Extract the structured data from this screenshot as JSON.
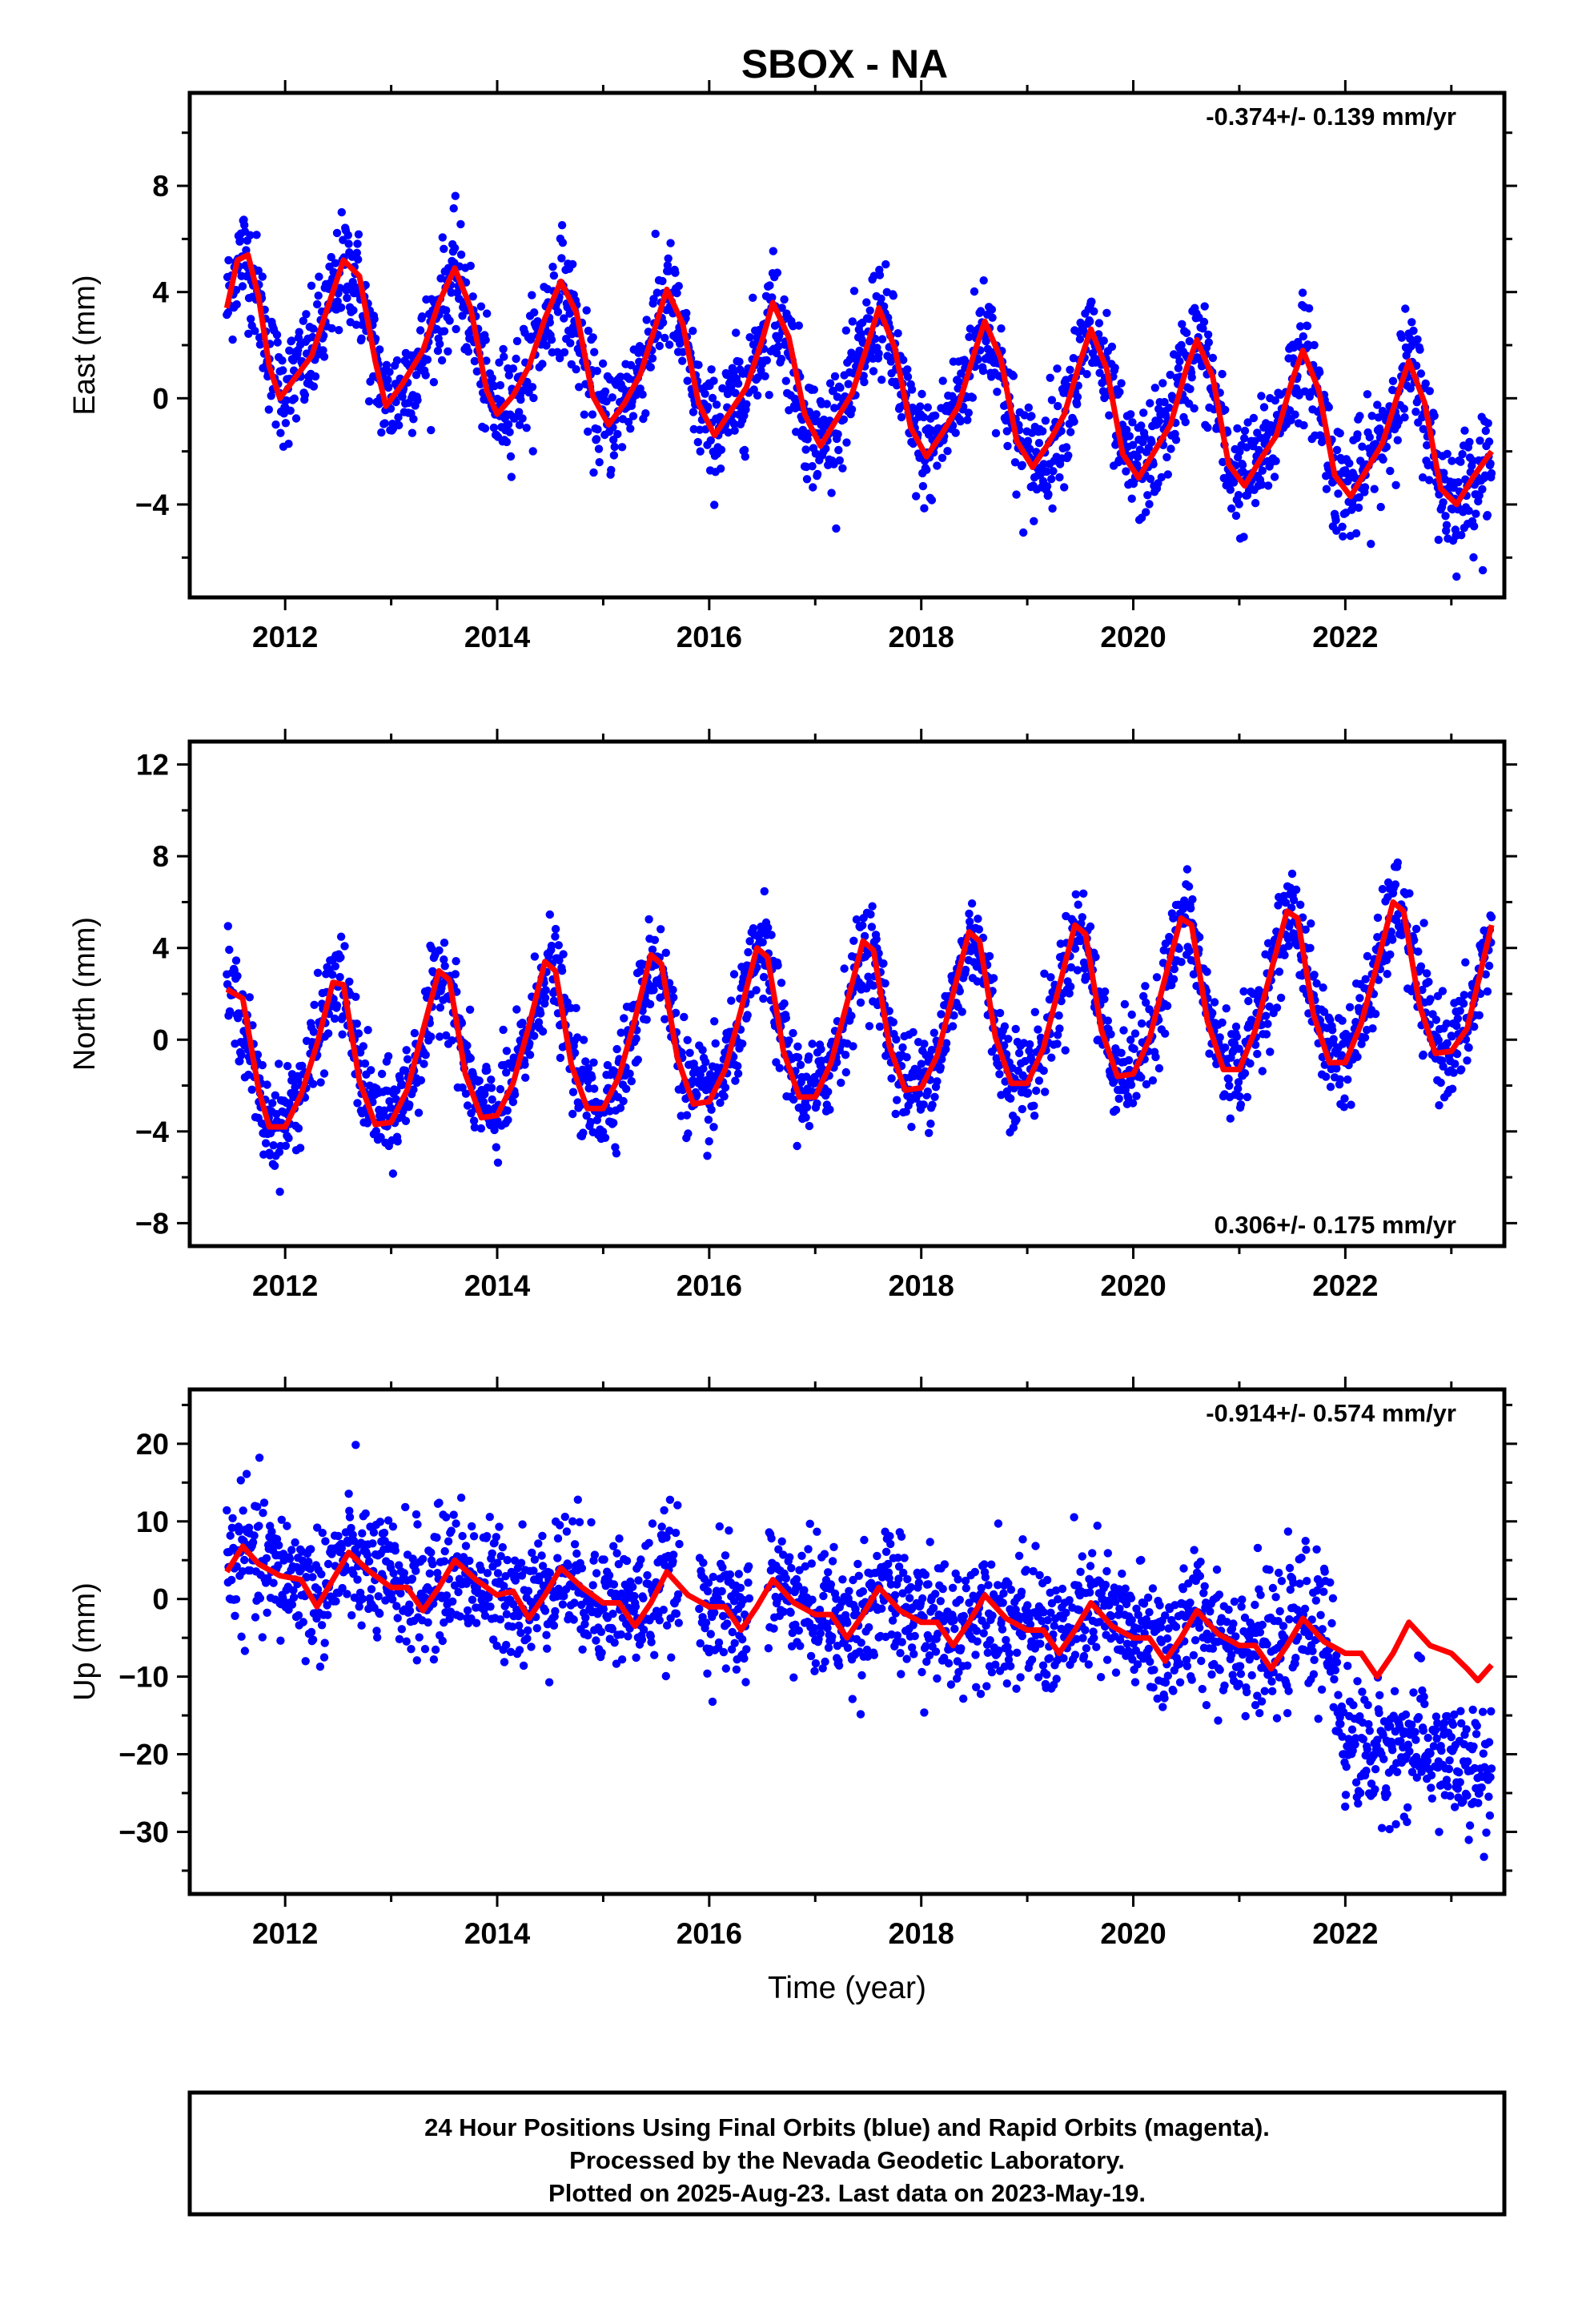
{
  "chart_data": [
    {
      "type": "scatter",
      "title": "SBOX - NA",
      "ylabel": "East (mm)",
      "xlabel": "",
      "annotation": "-0.374+/- 0.139 mm/yr",
      "annotation_position": "top-right",
      "xlim": [
        2011.1,
        2023.5
      ],
      "ylim": [
        -7.5,
        11.5
      ],
      "x_ticks": [
        2012,
        2014,
        2016,
        2018,
        2020,
        2022
      ],
      "x_tick_labels": [
        "2012",
        "2014",
        "2016",
        "2018",
        "2020",
        "2022"
      ],
      "y_ticks": [
        -4,
        0,
        4,
        8
      ],
      "y_tick_labels": [
        "−4",
        "0",
        "4",
        "8"
      ],
      "colors": {
        "observations": "#0000ff",
        "model": "#ff0000"
      },
      "series": [
        {
          "kind": "observations",
          "note": "daily positions, scatter points follow the model with noise",
          "x": [
            2011.45,
            2011.6,
            2011.75,
            2012.0,
            2012.2,
            2012.45,
            2012.6,
            2012.8,
            2013.0,
            2013.3,
            2013.6,
            2013.9,
            2014.0,
            2014.3,
            2014.6,
            2014.8,
            2015.0,
            2015.3,
            2015.6,
            2015.8,
            2016.0,
            2016.3,
            2016.6,
            2016.9,
            2017.1,
            2017.4,
            2017.6,
            2017.9,
            2018.1,
            2018.4,
            2018.6,
            2018.9,
            2019.2,
            2019.5,
            2019.6,
            2019.9,
            2020.2,
            2020.4,
            2020.6,
            2020.9,
            2021.2,
            2021.4,
            2021.6,
            2021.9,
            2022.2,
            2022.4,
            2022.6,
            2022.9,
            2023.2,
            2023.38
          ],
          "y": [
            3.6,
            5.6,
            3.6,
            0.3,
            1.3,
            3.2,
            5.0,
            1.5,
            -0.2,
            1.1,
            4.7,
            0.3,
            -0.5,
            1.0,
            4.3,
            0.4,
            -1.0,
            0.8,
            4.0,
            0.2,
            -1.2,
            0.3,
            3.5,
            -1.0,
            -1.4,
            1.6,
            3.3,
            -1.4,
            -2.0,
            0.9,
            2.9,
            -1.9,
            -2.2,
            1.1,
            2.5,
            -2.3,
            -2.0,
            0.8,
            2.2,
            -2.7,
            -2.5,
            0.0,
            1.9,
            -3.0,
            -2.6,
            -0.5,
            1.4,
            -3.4,
            -3.2,
            -2.2
          ]
        },
        {
          "kind": "model",
          "x": [
            2011.45,
            2011.55,
            2011.65,
            2011.75,
            2011.85,
            2011.95,
            2012.1,
            2012.25,
            2012.4,
            2012.55,
            2012.7,
            2012.85,
            2012.95,
            2013.1,
            2013.3,
            2013.45,
            2013.6,
            2013.75,
            2013.9,
            2014.0,
            2014.15,
            2014.3,
            2014.45,
            2014.6,
            2014.75,
            2014.9,
            2015.05,
            2015.2,
            2015.35,
            2015.5,
            2015.6,
            2015.75,
            2015.9,
            2016.05,
            2016.2,
            2016.35,
            2016.5,
            2016.6,
            2016.75,
            2016.9,
            2017.05,
            2017.2,
            2017.35,
            2017.5,
            2017.6,
            2017.75,
            2017.9,
            2018.05,
            2018.2,
            2018.35,
            2018.5,
            2018.6,
            2018.75,
            2018.9,
            2019.05,
            2019.2,
            2019.35,
            2019.5,
            2019.6,
            2019.75,
            2019.9,
            2020.05,
            2020.2,
            2020.35,
            2020.5,
            2020.6,
            2020.75,
            2020.9,
            2021.05,
            2021.2,
            2021.35,
            2021.5,
            2021.6,
            2021.75,
            2021.9,
            2022.05,
            2022.2,
            2022.35,
            2022.5,
            2022.6,
            2022.75,
            2022.9,
            2023.05,
            2023.2,
            2023.38
          ],
          "y": [
            3.4,
            5.2,
            5.4,
            3.8,
            1.2,
            0.0,
            0.8,
            1.6,
            3.4,
            5.2,
            4.6,
            1.4,
            -0.3,
            0.5,
            1.8,
            3.6,
            4.9,
            3.4,
            0.3,
            -0.6,
            0.1,
            1.2,
            3.0,
            4.4,
            3.2,
            0.1,
            -1.0,
            -0.2,
            0.9,
            2.8,
            4.1,
            2.8,
            -0.2,
            -1.4,
            -0.5,
            0.4,
            2.2,
            3.6,
            2.3,
            -0.6,
            -1.8,
            -0.8,
            0.2,
            2.1,
            3.4,
            1.9,
            -1.1,
            -2.2,
            -1.3,
            -0.3,
            1.7,
            2.9,
            1.5,
            -1.6,
            -2.6,
            -1.7,
            -0.6,
            1.4,
            2.6,
            1.1,
            -2.1,
            -3.0,
            -2.0,
            -1.0,
            1.1,
            2.2,
            0.8,
            -2.5,
            -3.3,
            -2.3,
            -1.4,
            0.7,
            1.8,
            0.3,
            -2.9,
            -3.7,
            -2.7,
            -1.7,
            0.2,
            1.4,
            -0.2,
            -3.4,
            -4.0,
            -3.0,
            -2.0
          ]
        }
      ]
    },
    {
      "type": "scatter",
      "title": "",
      "ylabel": "North (mm)",
      "xlabel": "",
      "annotation": "0.306+/- 0.175 mm/yr",
      "annotation_position": "bottom-right",
      "xlim": [
        2011.1,
        2023.5
      ],
      "ylim": [
        -9,
        13
      ],
      "x_ticks": [
        2012,
        2014,
        2016,
        2018,
        2020,
        2022
      ],
      "x_tick_labels": [
        "2012",
        "2014",
        "2016",
        "2018",
        "2020",
        "2022"
      ],
      "y_ticks": [
        -8,
        -4,
        0,
        4,
        8,
        12
      ],
      "y_tick_labels": [
        "−8",
        "−4",
        "0",
        "4",
        "8",
        "12"
      ],
      "colors": {
        "observations": "#0000ff",
        "model": "#ff0000"
      },
      "series": [
        {
          "kind": "observations",
          "note": "daily positions, scatter points follow the model with noise",
          "x": [
            2011.45,
            2011.8,
            2012.0,
            2012.2,
            2012.5,
            2012.8,
            2013.0,
            2013.3,
            2013.5,
            2013.8,
            2014.0,
            2014.3,
            2014.5,
            2014.8,
            2015.0,
            2015.3,
            2015.5,
            2015.8,
            2016.0,
            2016.3,
            2016.5,
            2016.8,
            2017.0,
            2017.3,
            2017.5,
            2017.8,
            2018.0,
            2018.3,
            2018.5,
            2018.8,
            2019.0,
            2019.3,
            2019.5,
            2019.8,
            2020.0,
            2020.3,
            2020.5,
            2020.8,
            2021.0,
            2021.3,
            2021.5,
            2021.8,
            2022.0,
            2022.3,
            2022.5,
            2022.8,
            2023.0,
            2023.2,
            2023.38
          ],
          "y": [
            2.5,
            -4.0,
            -2.8,
            -1.3,
            2.8,
            -2.0,
            -3.3,
            -0.8,
            3.2,
            -2.2,
            -3.0,
            -0.5,
            3.5,
            -1.8,
            -2.8,
            -0.2,
            3.8,
            -1.3,
            -2.5,
            0.0,
            4.1,
            -1.2,
            -2.3,
            0.6,
            4.3,
            -0.8,
            -1.8,
            1.0,
            4.7,
            -0.5,
            -1.6,
            1.6,
            4.9,
            -0.3,
            -1.3,
            2.0,
            5.3,
            0.5,
            -0.8,
            2.4,
            5.6,
            1.0,
            -0.6,
            2.6,
            6.0,
            1.2,
            -0.5,
            1.0,
            5.0
          ]
        },
        {
          "kind": "model",
          "x": [
            2011.45,
            2011.6,
            2011.75,
            2011.85,
            2012.0,
            2012.15,
            2012.3,
            2012.45,
            2012.55,
            2012.7,
            2012.85,
            2013.0,
            2013.15,
            2013.3,
            2013.45,
            2013.55,
            2013.7,
            2013.85,
            2014.0,
            2014.15,
            2014.3,
            2014.45,
            2014.55,
            2014.7,
            2014.85,
            2015.0,
            2015.15,
            2015.3,
            2015.45,
            2015.55,
            2015.7,
            2015.85,
            2016.0,
            2016.15,
            2016.3,
            2016.45,
            2016.55,
            2016.7,
            2016.85,
            2017.0,
            2017.15,
            2017.3,
            2017.45,
            2017.55,
            2017.7,
            2017.85,
            2018.0,
            2018.15,
            2018.3,
            2018.45,
            2018.55,
            2018.7,
            2018.85,
            2019.0,
            2019.15,
            2019.3,
            2019.45,
            2019.55,
            2019.7,
            2019.85,
            2020.0,
            2020.15,
            2020.3,
            2020.45,
            2020.55,
            2020.7,
            2020.85,
            2021.0,
            2021.15,
            2021.3,
            2021.45,
            2021.55,
            2021.7,
            2021.85,
            2022.0,
            2022.15,
            2022.3,
            2022.45,
            2022.55,
            2022.7,
            2022.85,
            2023.0,
            2023.15,
            2023.38
          ],
          "y": [
            2.2,
            1.8,
            -2.2,
            -3.8,
            -3.8,
            -2.4,
            -0.2,
            2.5,
            2.4,
            -1.8,
            -3.7,
            -3.6,
            -2.2,
            0.4,
            3.0,
            2.6,
            -1.5,
            -3.4,
            -3.3,
            -1.9,
            0.6,
            3.4,
            3.0,
            -1.1,
            -3.0,
            -3.0,
            -1.6,
            0.9,
            3.7,
            3.3,
            -0.8,
            -2.8,
            -2.7,
            -1.3,
            1.3,
            4.0,
            3.6,
            -0.5,
            -2.5,
            -2.5,
            -1.0,
            1.6,
            4.3,
            3.9,
            -0.3,
            -2.2,
            -2.1,
            -0.7,
            2.0,
            4.7,
            4.3,
            0.1,
            -1.9,
            -1.9,
            -0.4,
            2.3,
            5.0,
            4.6,
            0.4,
            -1.6,
            -1.5,
            0.0,
            2.7,
            5.3,
            5.0,
            0.8,
            -1.3,
            -1.3,
            0.4,
            3.0,
            5.6,
            5.3,
            1.1,
            -1.0,
            -1.0,
            0.7,
            3.3,
            6.0,
            5.6,
            1.5,
            -0.6,
            -0.5,
            0.5,
            5.0
          ]
        }
      ]
    },
    {
      "type": "scatter",
      "title": "",
      "ylabel": "Up (mm)",
      "xlabel": "Time (year)",
      "annotation": "-0.914+/- 0.574 mm/yr",
      "annotation_position": "top-right",
      "xlim": [
        2011.1,
        2023.5
      ],
      "ylim": [
        -38,
        27
      ],
      "x_ticks": [
        2012,
        2014,
        2016,
        2018,
        2020,
        2022
      ],
      "x_tick_labels": [
        "2012",
        "2014",
        "2016",
        "2018",
        "2020",
        "2022"
      ],
      "y_ticks": [
        -30,
        -20,
        -10,
        0,
        10,
        20
      ],
      "y_tick_labels": [
        "−30",
        "−20",
        "−10",
        "0",
        "10",
        "20"
      ],
      "colors": {
        "observations": "#0000ff",
        "model": "#ff0000"
      },
      "series": [
        {
          "kind": "observations",
          "note": "daily positions; offset of about -15 mm after 2021.8",
          "x": [
            2011.45,
            2011.8,
            2012.2,
            2012.6,
            2013.0,
            2013.5,
            2014.0,
            2014.5,
            2015.0,
            2015.5,
            2016.0,
            2016.3,
            2016.6,
            2016.9,
            2017.3,
            2017.6,
            2018.0,
            2018.4,
            2018.8,
            2019.2,
            2019.6,
            2020.0,
            2020.4,
            2020.8,
            2021.2,
            2021.6,
            2021.8,
            2022.0,
            2022.3,
            2022.6,
            2022.9,
            2023.1,
            2023.38
          ],
          "y": [
            5.0,
            4.0,
            2.0,
            4.5,
            2.0,
            4.0,
            1.5,
            3.5,
            0.5,
            2.5,
            -0.5,
            -2.0,
            2.0,
            0.0,
            -1.5,
            1.0,
            -2.0,
            -1.0,
            -2.5,
            -3.0,
            -1.0,
            -3.5,
            -4.0,
            -3.5,
            -5.0,
            -1.5,
            -2.0,
            -18.0,
            -20.0,
            -18.5,
            -20.0,
            -22.0,
            -24.0
          ]
        },
        {
          "kind": "model",
          "x": [
            2011.45,
            2011.6,
            2011.75,
            2011.95,
            2012.15,
            2012.3,
            2012.45,
            2012.6,
            2012.8,
            2013.0,
            2013.15,
            2013.3,
            2013.45,
            2013.6,
            2013.8,
            2014.0,
            2014.15,
            2014.3,
            2014.45,
            2014.6,
            2014.8,
            2015.0,
            2015.15,
            2015.3,
            2015.45,
            2015.6,
            2015.8,
            2016.0,
            2016.15,
            2016.3,
            2016.45,
            2016.6,
            2016.8,
            2017.0,
            2017.15,
            2017.3,
            2017.45,
            2017.6,
            2017.8,
            2018.0,
            2018.15,
            2018.3,
            2018.45,
            2018.6,
            2018.8,
            2019.0,
            2019.15,
            2019.3,
            2019.45,
            2019.6,
            2019.8,
            2020.0,
            2020.15,
            2020.3,
            2020.45,
            2020.6,
            2020.8,
            2021.0,
            2021.15,
            2021.3,
            2021.45,
            2021.6,
            2021.8,
            2022.0,
            2022.15,
            2022.3,
            2022.45,
            2022.6,
            2022.8,
            2023.0,
            2023.15,
            2023.25,
            2023.38
          ],
          "y": [
            3.5,
            6.8,
            4.5,
            3.0,
            2.5,
            -1.0,
            2.5,
            6.0,
            3.5,
            1.5,
            1.5,
            -1.5,
            1.5,
            5.0,
            2.5,
            0.5,
            1.0,
            -2.5,
            0.5,
            4.0,
            1.5,
            -0.5,
            -0.5,
            -3.5,
            -0.5,
            3.5,
            0.5,
            -1.0,
            -1.0,
            -4.0,
            -1.0,
            2.5,
            -0.5,
            -2.0,
            -2.0,
            -5.0,
            -2.0,
            1.5,
            -1.5,
            -3.0,
            -3.0,
            -6.0,
            -3.0,
            0.5,
            -2.5,
            -4.0,
            -4.0,
            -7.0,
            -4.0,
            -0.5,
            -3.5,
            -5.0,
            -5.0,
            -8.0,
            -5.0,
            -1.5,
            -4.5,
            -6.0,
            -6.0,
            -9.0,
            -6.0,
            -2.5,
            -5.5,
            -7.0,
            -7.0,
            -10.0,
            -7.0,
            -3.0,
            -6.0,
            -7.0,
            -9.0,
            -10.5,
            -8.5
          ]
        }
      ]
    }
  ],
  "footer": {
    "line1": "24 Hour Positions Using Final Orbits (blue) and Rapid Orbits (magenta).",
    "line2": "Processed by the Nevada Geodetic Laboratory.",
    "line3": "Plotted on 2025-Aug-23. Last data on 2023-May-19."
  }
}
